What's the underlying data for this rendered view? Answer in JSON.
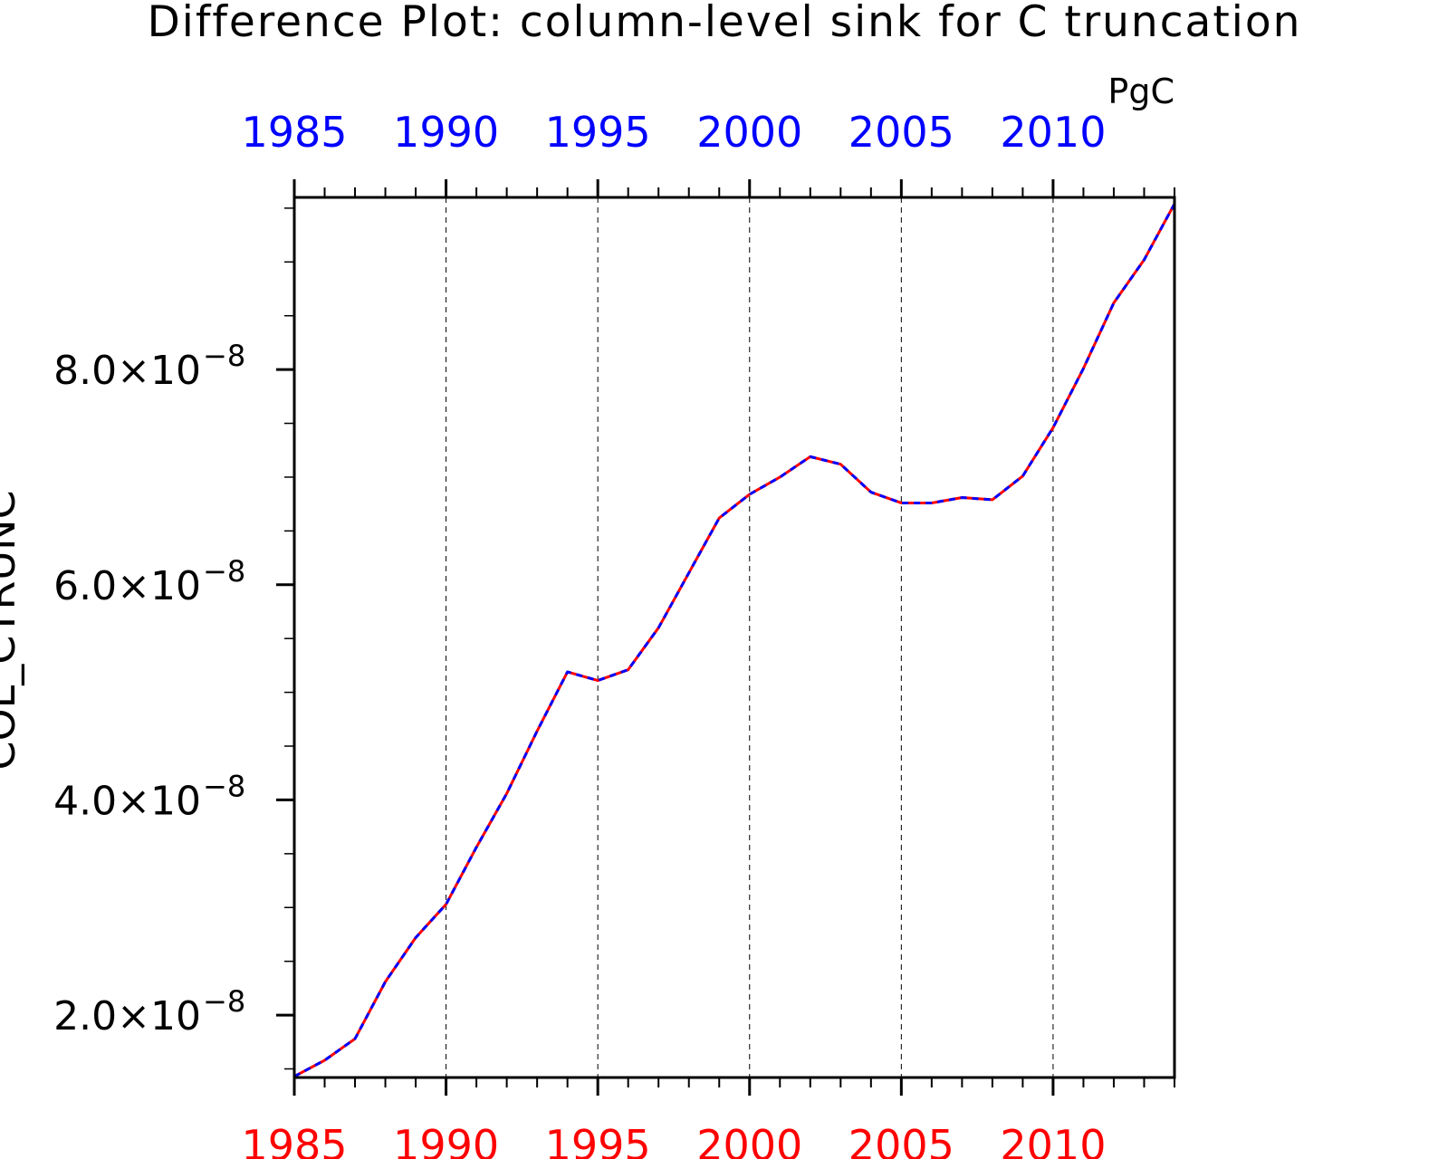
{
  "chart_data": {
    "type": "line",
    "title": "Difference Plot: column-level sink for C truncation",
    "units": "PgC",
    "ylabel": "COL_CTRUNC",
    "xlim": [
      1985,
      2014
    ],
    "ylim": [
      1.42e-08,
      9.6e-08
    ],
    "x_ticks": [
      1985,
      1990,
      1995,
      2000,
      2005,
      2010
    ],
    "x_tick_labels": [
      "1985",
      "1990",
      "1995",
      "2000",
      "2005",
      "2010"
    ],
    "y_ticks": [
      2e-08,
      4e-08,
      6e-08,
      8e-08
    ],
    "y_tick_mantissas": [
      "2.0",
      "4.0",
      "6.0",
      "8.0"
    ],
    "y_tick_exponent": "-8",
    "grid": "vertical dashed at major x ticks",
    "colors": {
      "bottom_axis_labels": "#ff0000",
      "top_axis_labels": "#0000ff",
      "series_a": "#ff0000",
      "series_b": "#0000ff"
    },
    "x": [
      1985,
      1986,
      1987,
      1988,
      1989,
      1990,
      1991,
      1992,
      1993,
      1994,
      1995,
      1996,
      1997,
      1998,
      1999,
      2000,
      2001,
      2002,
      2003,
      2004,
      2005,
      2006,
      2007,
      2008,
      2009,
      2010,
      2011,
      2012,
      2013,
      2014
    ],
    "series": [
      {
        "values": [
          1.43e-08,
          1.58e-08,
          1.78e-08,
          2.31e-08,
          2.72e-08,
          3.03e-08,
          3.56e-08,
          4.06e-08,
          4.64e-08,
          5.19e-08,
          5.11e-08,
          5.21e-08,
          5.6e-08,
          6.11e-08,
          6.62e-08,
          6.84e-08,
          7e-08,
          7.19e-08,
          7.12e-08,
          6.86e-08,
          6.76e-08,
          6.76e-08,
          6.81e-08,
          6.79e-08,
          7.01e-08,
          7.46e-08,
          8.01e-08,
          8.62e-08,
          9.02e-08,
          9.54e-08
        ]
      },
      {
        "values": [
          1.43e-08,
          1.58e-08,
          1.78e-08,
          2.31e-08,
          2.72e-08,
          3.03e-08,
          3.56e-08,
          4.06e-08,
          4.64e-08,
          5.19e-08,
          5.11e-08,
          5.21e-08,
          5.6e-08,
          6.11e-08,
          6.62e-08,
          6.84e-08,
          7e-08,
          7.19e-08,
          7.12e-08,
          6.86e-08,
          6.76e-08,
          6.76e-08,
          6.81e-08,
          6.79e-08,
          7.01e-08,
          7.46e-08,
          8.01e-08,
          8.62e-08,
          9.02e-08,
          9.54e-08
        ]
      }
    ]
  }
}
